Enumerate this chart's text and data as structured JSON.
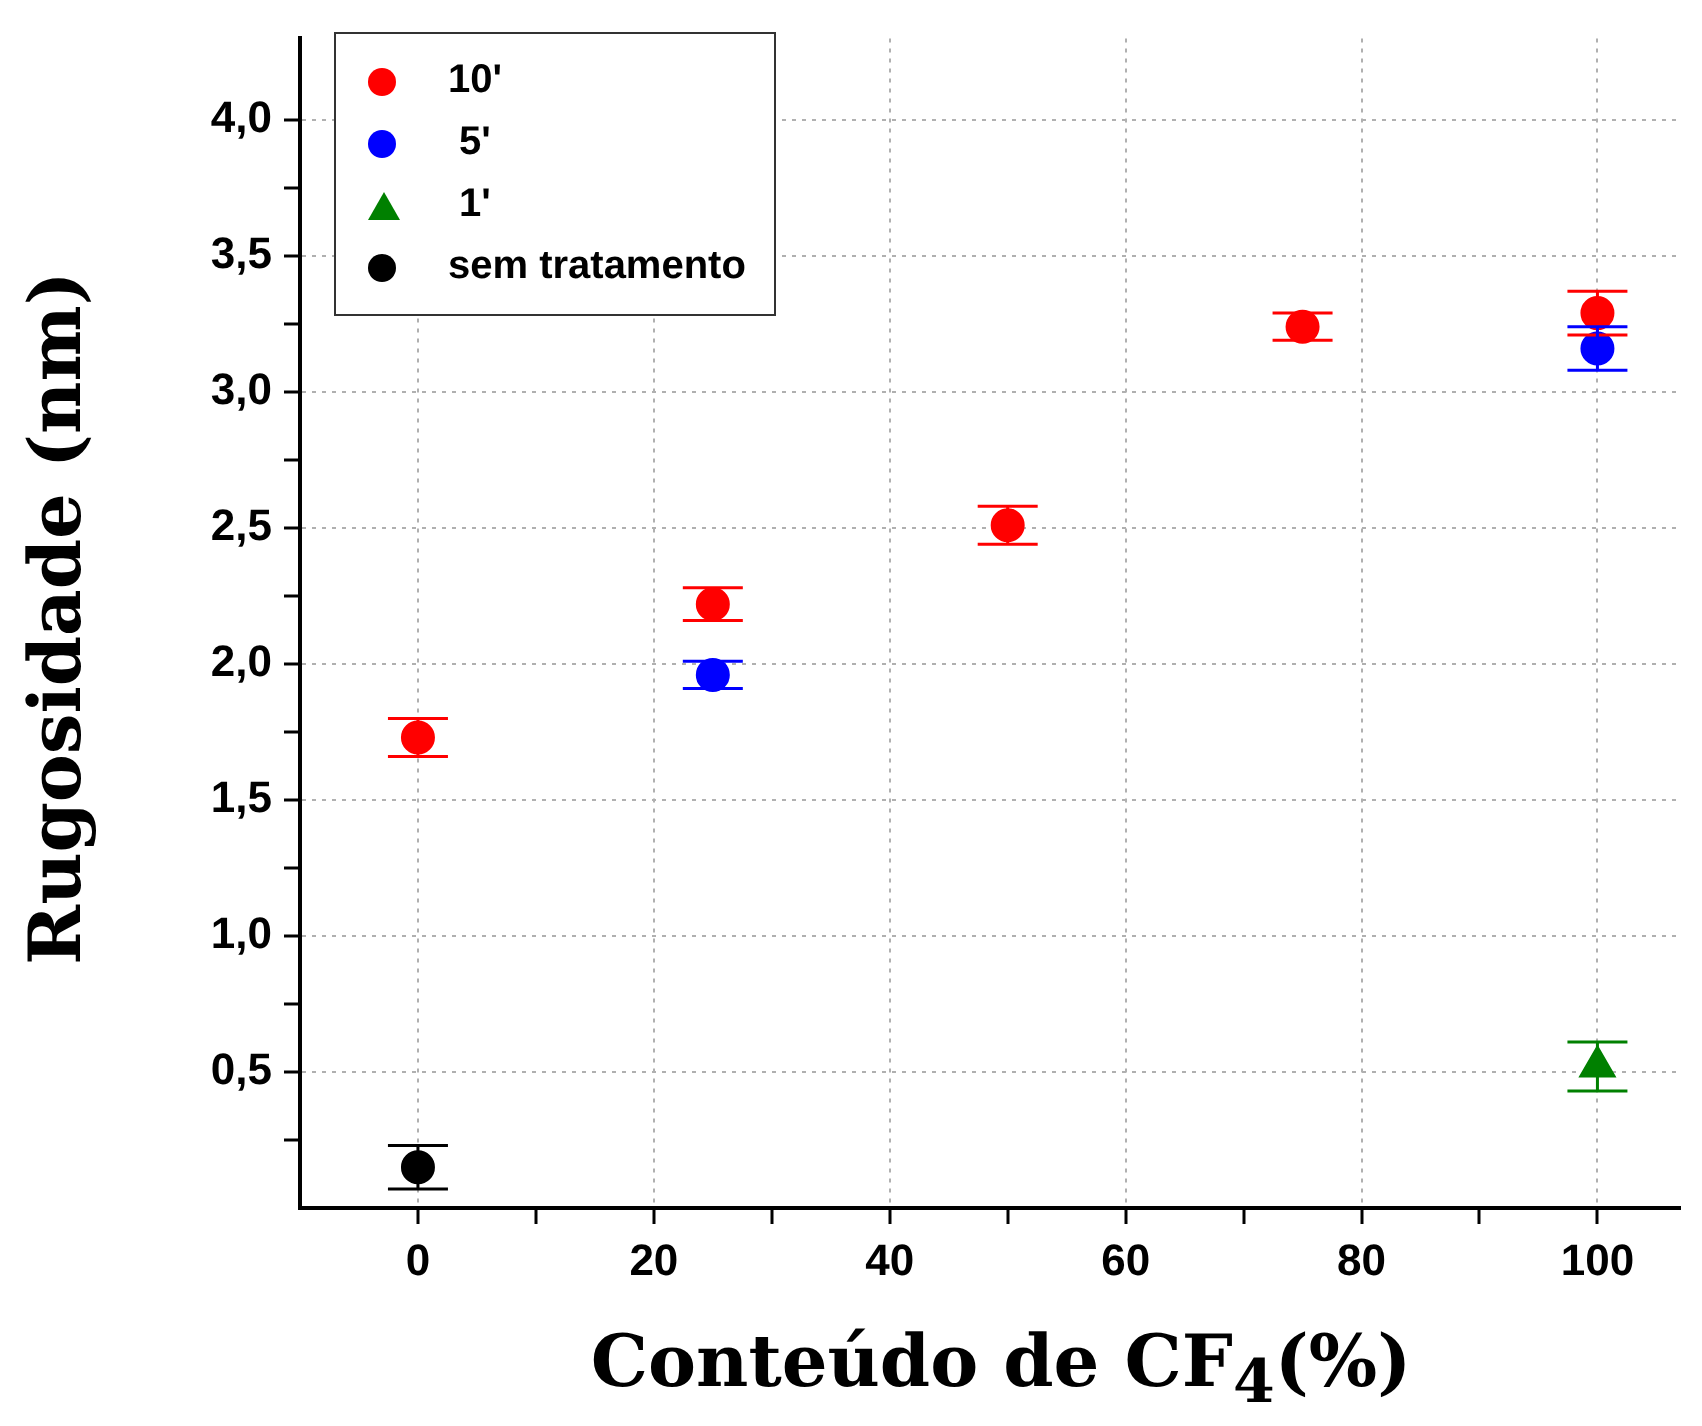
{
  "chart_data": {
    "type": "scatter",
    "xlabel": "Conteúdo de CF$_{4}$(%)",
    "ylabel": "Rugosidade (nm)",
    "xlim": [
      -10,
      107
    ],
    "ylim": [
      0,
      4.3
    ],
    "xticks": [
      0,
      {
        "value": 10,
        "label": null
      },
      20,
      {
        "value": 30,
        "label": null
      },
      40,
      {
        "value": 50,
        "label": null
      },
      60,
      {
        "value": 70,
        "label": null
      },
      80,
      {
        "value": 90,
        "label": null
      },
      100
    ],
    "yticks": [
      {
        "value": 0.25,
        "label": null
      },
      {
        "value": 0.5,
        "label": "0,5"
      },
      {
        "value": 0.75,
        "label": null
      },
      {
        "value": 1.0,
        "label": "1,0"
      },
      {
        "value": 1.25,
        "label": null
      },
      {
        "value": 1.5,
        "label": "1,5"
      },
      {
        "value": 1.75,
        "label": null
      },
      {
        "value": 2.0,
        "label": "2,0"
      },
      {
        "value": 2.25,
        "label": null
      },
      {
        "value": 2.5,
        "label": "2,5"
      },
      {
        "value": 2.75,
        "label": null
      },
      {
        "value": 3.0,
        "label": "3,0"
      },
      {
        "value": 3.25,
        "label": null
      },
      {
        "value": 3.5,
        "label": "3,5"
      },
      {
        "value": 3.75,
        "label": null
      },
      {
        "value": 4.0,
        "label": "4,0"
      }
    ],
    "grid": true,
    "legend": "top left",
    "series": [
      {
        "name": "10'",
        "color": "#ff0000",
        "marker": "circle",
        "x": [
          0,
          25,
          50,
          75,
          100
        ],
        "values": [
          1.73,
          2.22,
          2.51,
          3.24,
          3.29
        ],
        "errors": [
          0.07,
          0.06,
          0.07,
          0.05,
          0.08
        ]
      },
      {
        "name": " 5'",
        "color": "#0000ff",
        "marker": "circle",
        "x": [
          25,
          100
        ],
        "values": [
          1.96,
          3.16
        ],
        "errors": [
          0.05,
          0.08
        ]
      },
      {
        "name": " 1'",
        "color": "#008000",
        "marker": "triangle",
        "x": [
          100
        ],
        "values": [
          0.52
        ],
        "errors": [
          0.09
        ]
      },
      {
        "name": "sem tratamento",
        "color": "#000000",
        "marker": "circle",
        "x": [
          0
        ],
        "values": [
          0.15
        ],
        "errors": [
          0.08
        ]
      }
    ]
  }
}
